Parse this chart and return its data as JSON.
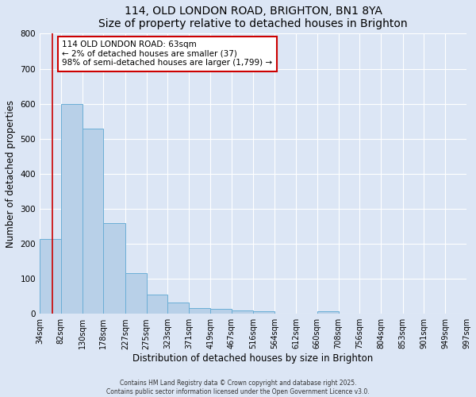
{
  "title": "114, OLD LONDON ROAD, BRIGHTON, BN1 8YA",
  "subtitle": "Size of property relative to detached houses in Brighton",
  "xlabel": "Distribution of detached houses by size in Brighton",
  "ylabel": "Number of detached properties",
  "bar_values": [
    214,
    600,
    530,
    258,
    117,
    54,
    31,
    17,
    13,
    9,
    6,
    0,
    0,
    8,
    0,
    0,
    0,
    0,
    0,
    0
  ],
  "bin_edges": [
    34,
    82,
    130,
    178,
    227,
    275,
    323,
    371,
    419,
    467,
    516,
    564,
    612,
    660,
    708,
    756,
    804,
    853,
    901,
    949,
    997
  ],
  "tick_labels": [
    "34sqm",
    "82sqm",
    "130sqm",
    "178sqm",
    "227sqm",
    "275sqm",
    "323sqm",
    "371sqm",
    "419sqm",
    "467sqm",
    "516sqm",
    "564sqm",
    "612sqm",
    "660sqm",
    "708sqm",
    "756sqm",
    "804sqm",
    "853sqm",
    "901sqm",
    "949sqm",
    "997sqm"
  ],
  "bar_color": "#b8d0e8",
  "bar_edge_color": "#6baed6",
  "red_line_x": 63,
  "annotation_text": "114 OLD LONDON ROAD: 63sqm\n← 2% of detached houses are smaller (37)\n98% of semi-detached houses are larger (1,799) →",
  "annotation_box_color": "#ffffff",
  "annotation_box_edge": "#cc0000",
  "ylim": [
    0,
    800
  ],
  "yticks": [
    0,
    100,
    200,
    300,
    400,
    500,
    600,
    700,
    800
  ],
  "background_color": "#dce6f5",
  "plot_bg_color": "#dce6f5",
  "grid_color": "#ffffff",
  "title_fontsize": 10,
  "subtitle_fontsize": 9,
  "label_fontsize": 8.5,
  "tick_fontsize": 7,
  "annotation_fontsize": 7.5,
  "footer_line1": "Contains HM Land Registry data © Crown copyright and database right 2025.",
  "footer_line2": "Contains public sector information licensed under the Open Government Licence v3.0."
}
